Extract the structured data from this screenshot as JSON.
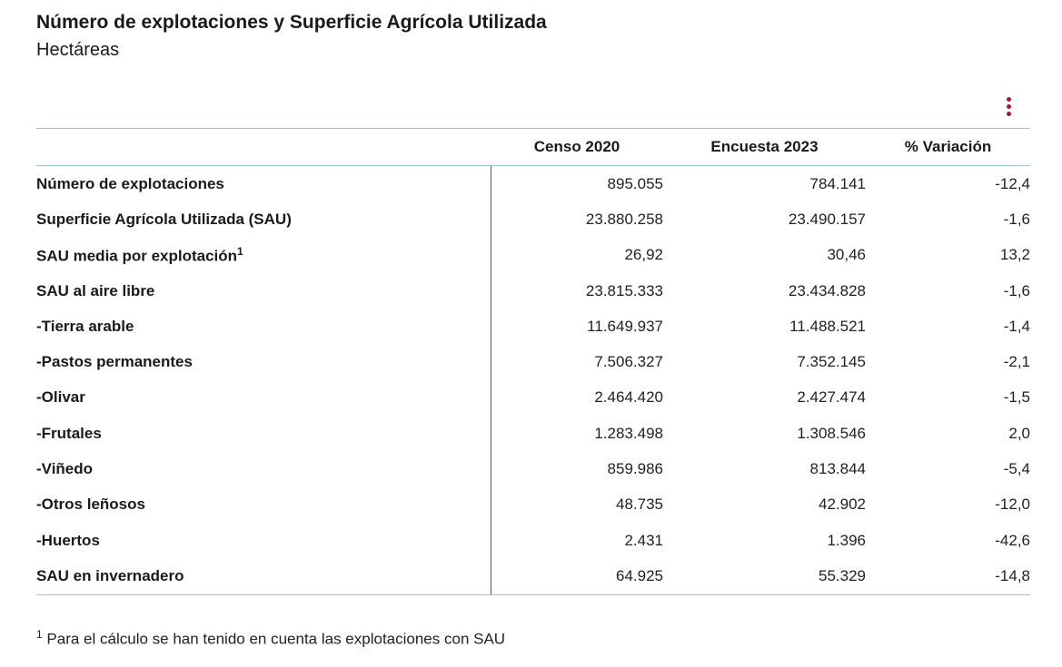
{
  "header": {
    "title": "Número de explotaciones y Superficie Agrícola Utilizada",
    "subtitle": "Hectáreas",
    "menu_icon": "more-vertical-icon",
    "accent_color": "#a3173a"
  },
  "table": {
    "columns": [
      "",
      "Censo 2020",
      "Encuesta 2023",
      "% Variación"
    ],
    "rows": [
      {
        "label": "Número de explotaciones",
        "sup": "",
        "censo_2020": "895.055",
        "encuesta_2023": "784.141",
        "variacion": "-12,4"
      },
      {
        "label": "Superficie Agrícola Utilizada (SAU)",
        "sup": "",
        "censo_2020": "23.880.258",
        "encuesta_2023": "23.490.157",
        "variacion": "-1,6"
      },
      {
        "label": "SAU media por explotación",
        "sup": "1",
        "censo_2020": "26,92",
        "encuesta_2023": "30,46",
        "variacion": "13,2"
      },
      {
        "label": "SAU al aire libre",
        "sup": "",
        "censo_2020": "23.815.333",
        "encuesta_2023": "23.434.828",
        "variacion": "-1,6"
      },
      {
        "label": "-Tierra arable",
        "sup": "",
        "censo_2020": "11.649.937",
        "encuesta_2023": "11.488.521",
        "variacion": "-1,4"
      },
      {
        "label": "-Pastos permanentes",
        "sup": "",
        "censo_2020": "7.506.327",
        "encuesta_2023": "7.352.145",
        "variacion": "-2,1"
      },
      {
        "label": "-Olivar",
        "sup": "",
        "censo_2020": "2.464.420",
        "encuesta_2023": "2.427.474",
        "variacion": "-1,5"
      },
      {
        "label": "-Frutales",
        "sup": "",
        "censo_2020": "1.283.498",
        "encuesta_2023": "1.308.546",
        "variacion": "2,0"
      },
      {
        "label": "-Viñedo",
        "sup": "",
        "censo_2020": "859.986",
        "encuesta_2023": "813.844",
        "variacion": "-5,4"
      },
      {
        "label": "-Otros leñosos",
        "sup": "",
        "censo_2020": "48.735",
        "encuesta_2023": "42.902",
        "variacion": "-12,0"
      },
      {
        "label": "-Huertos",
        "sup": "",
        "censo_2020": "2.431",
        "encuesta_2023": "1.396",
        "variacion": "-42,6"
      },
      {
        "label": "SAU en invernadero",
        "sup": "",
        "censo_2020": "64.925",
        "encuesta_2023": "55.329",
        "variacion": "-14,8"
      }
    ]
  },
  "footnote": {
    "marker": "1",
    "text": "Para el cálculo se han tenido en cuenta las explotaciones con SAU"
  }
}
